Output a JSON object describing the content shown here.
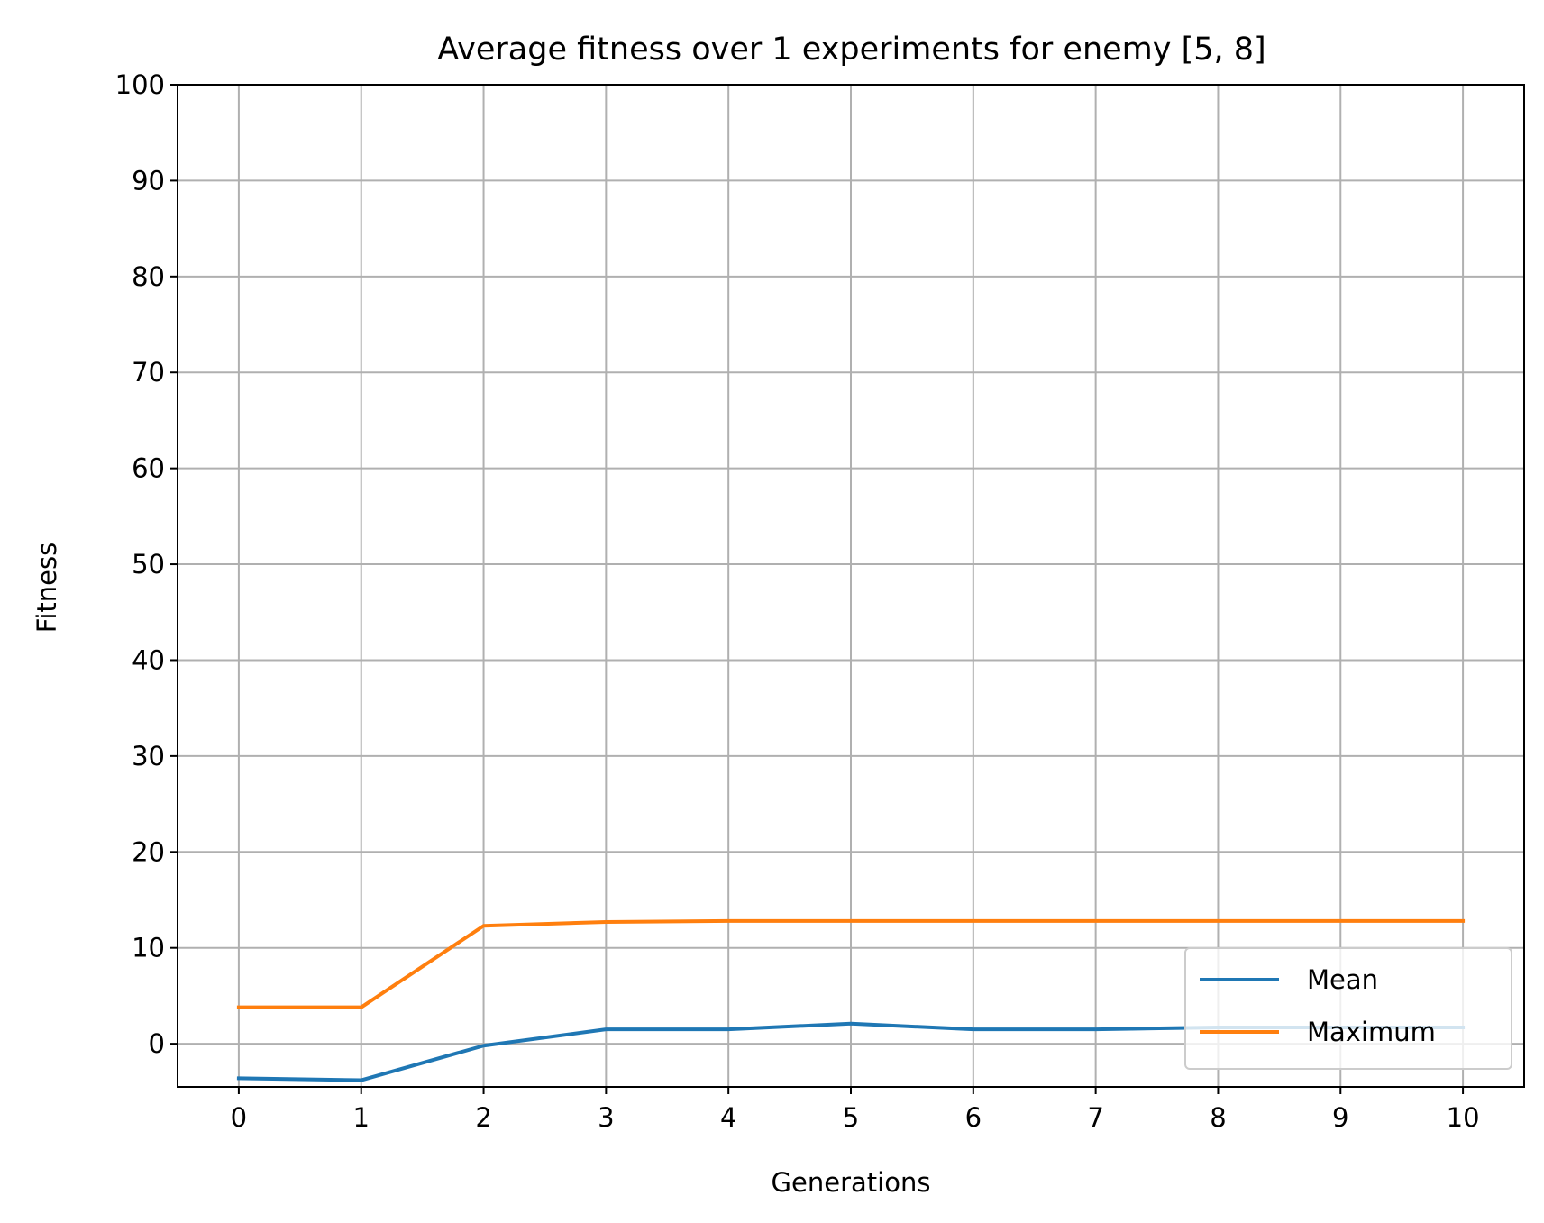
{
  "chart_data": {
    "type": "line",
    "title": "Average fitness over 1 experiments for enemy [5, 8]",
    "xlabel": "Generations",
    "ylabel": "Fitness",
    "x": [
      0,
      1,
      2,
      3,
      4,
      5,
      6,
      7,
      8,
      9,
      10
    ],
    "xticks": [
      "0",
      "1",
      "2",
      "3",
      "4",
      "5",
      "6",
      "7",
      "8",
      "9",
      "10"
    ],
    "yticks": [
      "0",
      "10",
      "20",
      "30",
      "40",
      "50",
      "60",
      "70",
      "80",
      "90",
      "100"
    ],
    "xlim": [
      -0.5,
      10.5
    ],
    "ylim": [
      -4.5,
      100
    ],
    "grid": true,
    "legend_position": "lower right",
    "series": [
      {
        "name": "Mean",
        "color": "#1f77b4",
        "values": [
          -3.6,
          -3.8,
          -0.2,
          1.5,
          1.5,
          2.1,
          1.5,
          1.5,
          1.7,
          1.7,
          1.7
        ]
      },
      {
        "name": "Maximum",
        "color": "#ff7f0e",
        "values": [
          3.8,
          3.8,
          12.3,
          12.7,
          12.8,
          12.8,
          12.8,
          12.8,
          12.8,
          12.8,
          12.8
        ]
      }
    ]
  }
}
